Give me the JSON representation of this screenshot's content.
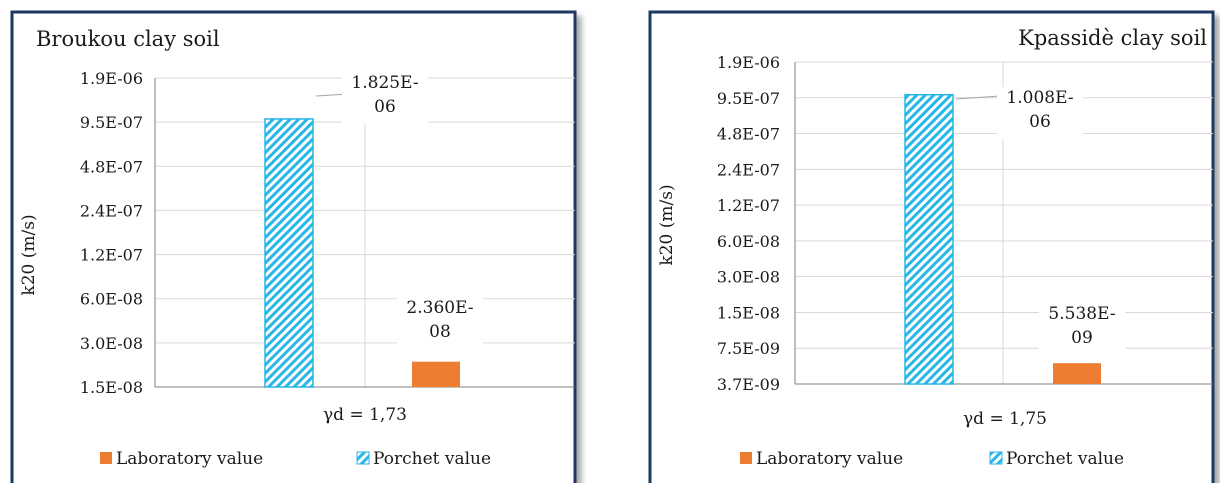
{
  "colors": {
    "laboratory": "#ed7d31",
    "porchet_stripe": "#29b6e8",
    "frame": "#1f3864",
    "grid": "#d9d9d9",
    "axis": "#808080"
  },
  "chart_data": [
    {
      "type": "bar",
      "scale": "log",
      "title": "Broukou clay soil",
      "ylabel": "k20 (m/s)",
      "categories": [
        "γd = 1,73"
      ],
      "yticks": [
        "1.9E-06",
        "9.5E-07",
        "4.8E-07",
        "2.4E-07",
        "1.2E-07",
        "6.0E-08",
        "3.0E-08",
        "1.5E-08"
      ],
      "ylim": [
        1.5e-08,
        3.8e-06
      ],
      "series": [
        {
          "name": "Porchet value",
          "values": [
            1.825e-06
          ],
          "label": "1.825E-06",
          "label_lines": [
            "1.825E-",
            "06"
          ]
        },
        {
          "name": "Laboratory value",
          "values": [
            2.36e-08
          ],
          "label": "2.360E-08",
          "label_lines": [
            "2.360E-",
            "08"
          ]
        }
      ],
      "legend": {
        "position": "bottom",
        "entries": [
          "Laboratory value",
          "Porchet value"
        ]
      }
    },
    {
      "type": "bar",
      "scale": "log",
      "title": "Kpassidè clay soil",
      "ylabel": "k20 (m/s)",
      "categories": [
        "γd = 1,75"
      ],
      "yticks": [
        "1.9E-06",
        "9.5E-07",
        "4.8E-07",
        "2.4E-07",
        "1.2E-07",
        "6.0E-08",
        "3.0E-08",
        "1.5E-08",
        "7.5E-09",
        "3.7E-09"
      ],
      "ylim": [
        3.7e-09,
        1.9e-06
      ],
      "series": [
        {
          "name": "Porchet value",
          "values": [
            1.008e-06
          ],
          "label": "1.008E-06",
          "label_lines": [
            "1.008E-",
            "06"
          ]
        },
        {
          "name": "Laboratory value",
          "values": [
            5.538e-09
          ],
          "label": "5.538E-09",
          "label_lines": [
            "5.538E-",
            "09"
          ]
        }
      ],
      "legend": {
        "position": "bottom",
        "entries": [
          "Laboratory value",
          "Porchet value"
        ]
      }
    }
  ]
}
